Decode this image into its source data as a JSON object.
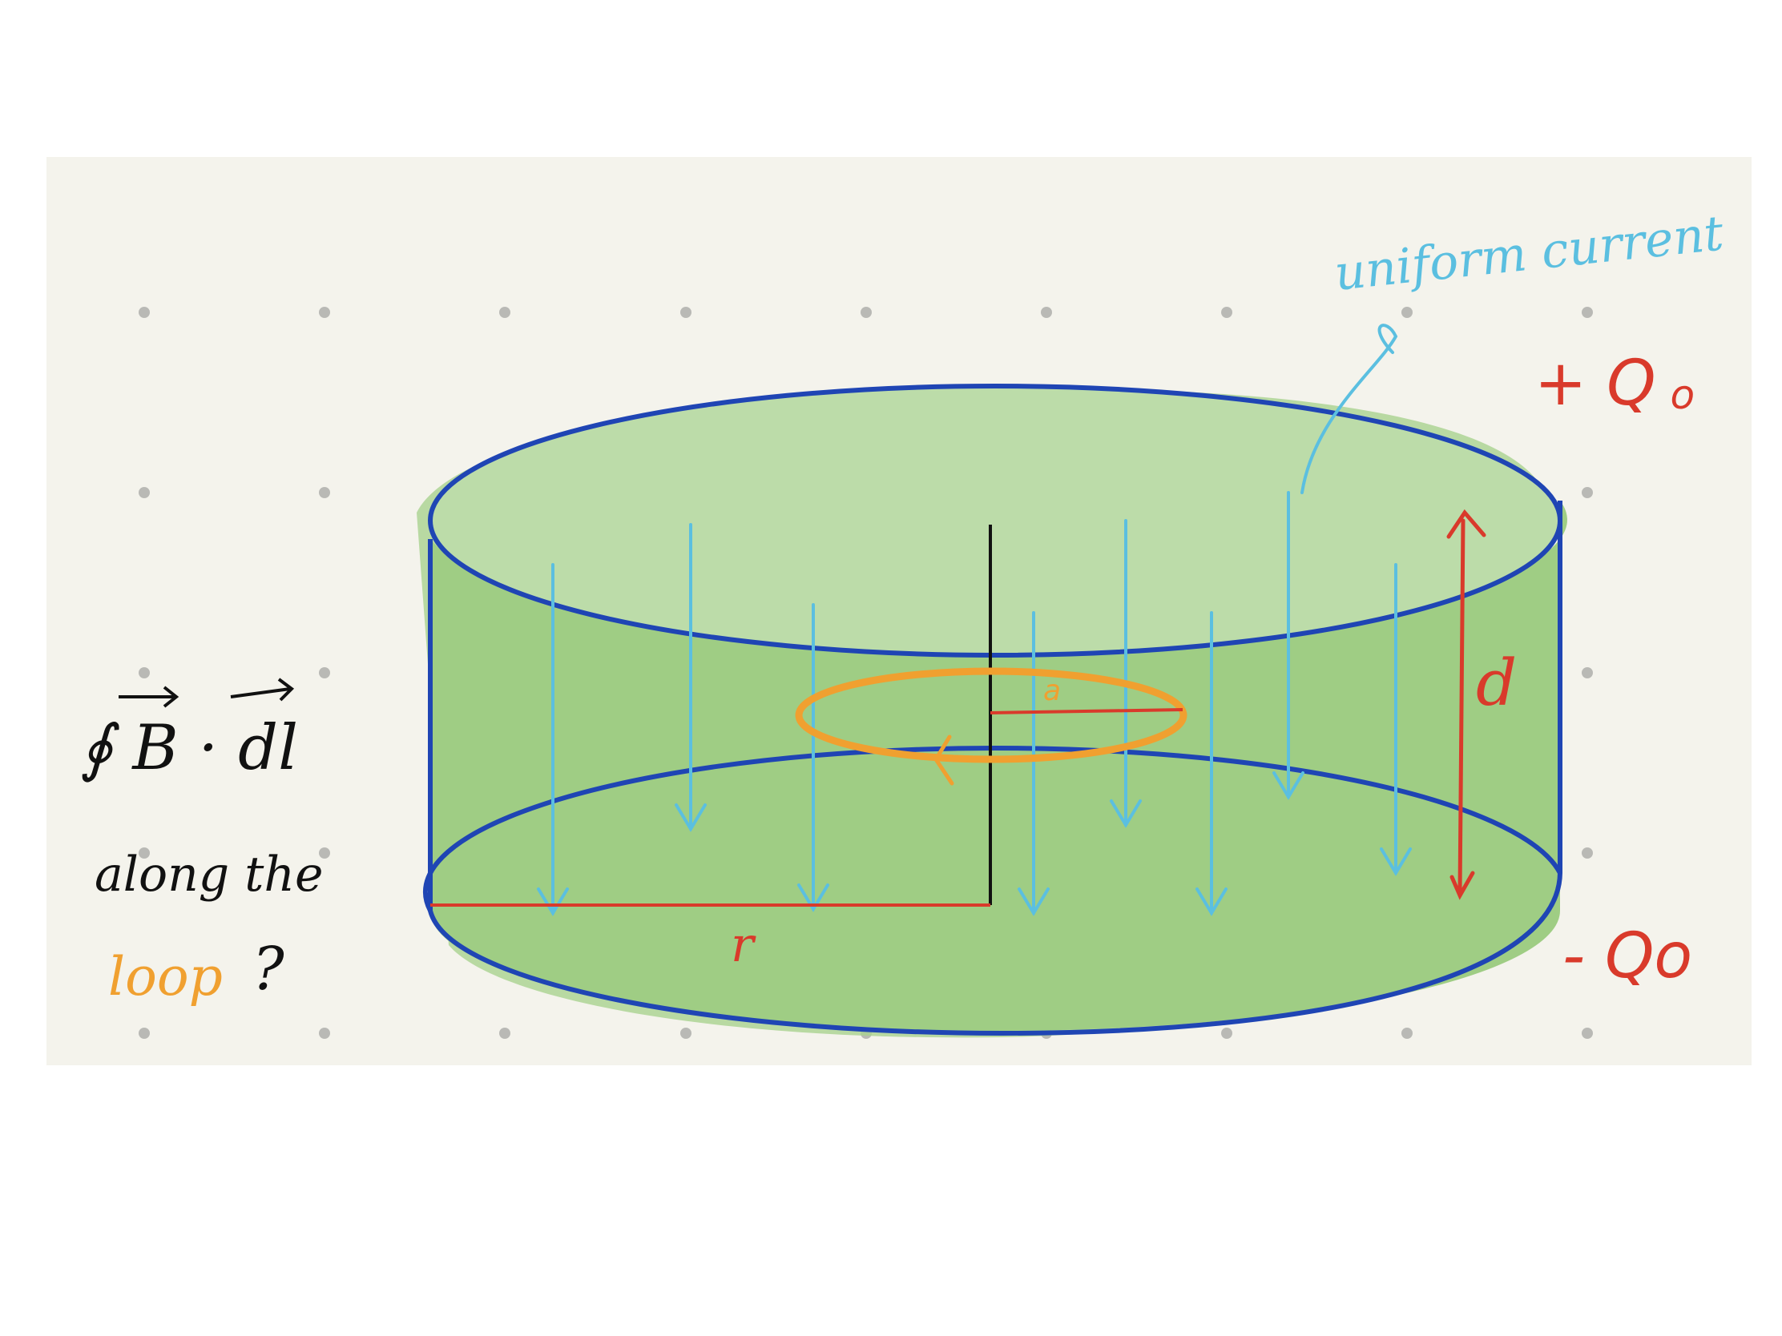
{
  "labels": {
    "plus_charge": "+ Q",
    "plus_charge_sub": "o",
    "minus_charge": "- Qo",
    "current_note": "uniform current",
    "separation": "d",
    "plate_radius": "r",
    "loop_radius": "a",
    "question_integral": "∮ B · dl",
    "question_along": "along the",
    "question_loop": "loop",
    "question_mark": "?"
  },
  "colors": {
    "paper": "#f4f3ec",
    "cylinder_fill": "#9fcd84",
    "cylinder_top": "#bcdca9",
    "cylinder_edge": "#1f45b4",
    "current_arrows": "#5bbfe0",
    "loop": "#f0a030",
    "measure": "#d93a2b",
    "axis": "#111111",
    "ink": "#111111"
  },
  "icons": [
    "arrow-down-icon",
    "double-arrow-icon",
    "counterclockwise-arrow-icon",
    "dot-grid"
  ]
}
